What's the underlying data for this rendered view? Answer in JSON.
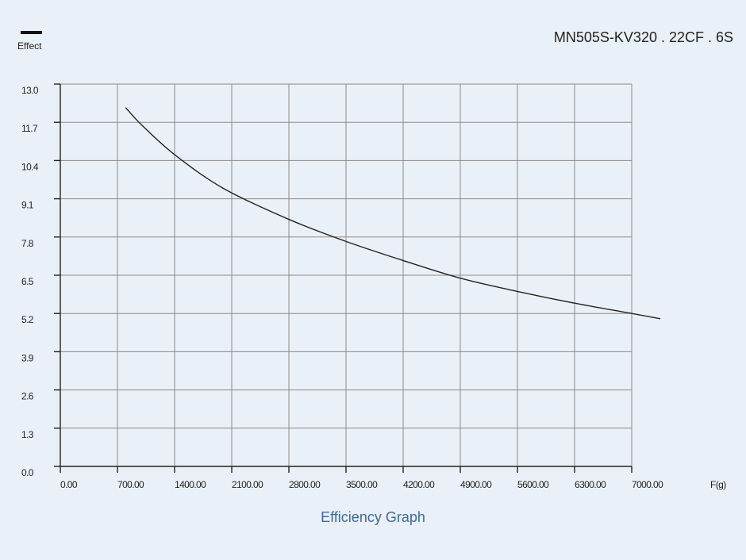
{
  "chart_data": {
    "type": "line",
    "title": "MN505S-KV320 . 22CF . 6S",
    "caption": "Efficiency Graph",
    "legend": {
      "label": "Effect",
      "placement": "top-left"
    },
    "xlabel": "F(g)",
    "ylabel": "",
    "xlim": [
      0,
      7000
    ],
    "ylim": [
      0,
      13.0
    ],
    "grid": true,
    "x_ticks": [
      0,
      700,
      1400,
      2100,
      2800,
      3500,
      4200,
      4900,
      5600,
      6300,
      7000
    ],
    "x_tick_labels": [
      "0.00",
      "700.00",
      "1400.00",
      "2100.00",
      "2800.00",
      "3500.00",
      "4200.00",
      "4900.00",
      "5600.00",
      "6300.00",
      "7000.00"
    ],
    "y_ticks": [
      0,
      1.3,
      2.6,
      3.9,
      5.2,
      6.5,
      7.8,
      9.1,
      10.4,
      11.7,
      13.0
    ],
    "y_tick_labels": [
      "0.0",
      "1.3",
      "2.6",
      "3.9",
      "5.2",
      "6.5",
      "7.8",
      "9.1",
      "10.4",
      "11.7",
      "13.0"
    ],
    "series": [
      {
        "name": "Effect",
        "color": "#222222",
        "x": [
          800,
          1000,
          1400,
          2000,
          2800,
          3500,
          4200,
          4900,
          5600,
          6300,
          7000,
          7350
        ],
        "y": [
          12.2,
          11.6,
          10.6,
          9.45,
          8.4,
          7.65,
          7.0,
          6.4,
          5.95,
          5.55,
          5.2,
          5.02
        ]
      }
    ]
  }
}
